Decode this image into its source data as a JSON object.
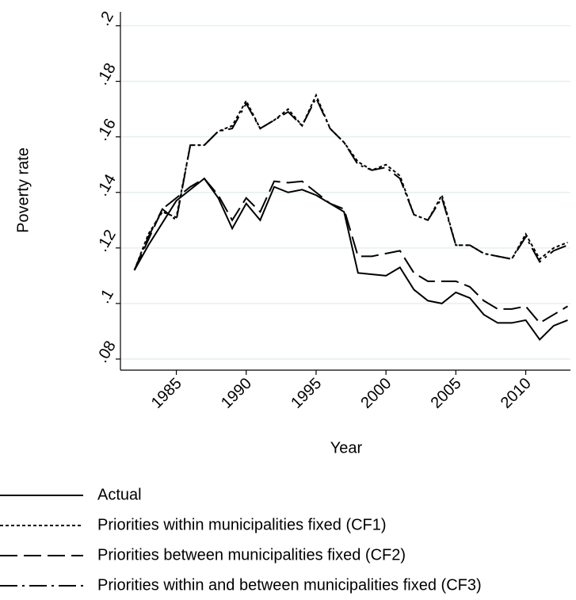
{
  "chart_data": {
    "type": "line",
    "y_label": "Poverty rate",
    "x_label": "Year",
    "x": [
      1982,
      1983,
      1984,
      1985,
      1986,
      1987,
      1988,
      1989,
      1990,
      1991,
      1992,
      1993,
      1994,
      1995,
      1996,
      1997,
      1998,
      1999,
      2000,
      2001,
      2002,
      2003,
      2004,
      2005,
      2006,
      2007,
      2008,
      2009,
      2010,
      2011,
      2012,
      2013
    ],
    "xlim": [
      1981,
      2013.2
    ],
    "xticks": [
      1985,
      1990,
      1995,
      2000,
      2005,
      2010
    ],
    "ylim": [
      0.076,
      0.205
    ],
    "yticks": [
      {
        "value": 0.08,
        "label": ".08"
      },
      {
        "value": 0.1,
        "label": ".1"
      },
      {
        "value": 0.12,
        "label": ".12"
      },
      {
        "value": 0.14,
        "label": ".14"
      },
      {
        "value": 0.16,
        "label": ".16"
      },
      {
        "value": 0.18,
        "label": ".18"
      },
      {
        "value": 0.2,
        "label": ".2"
      }
    ],
    "grid": true,
    "series": [
      {
        "name": "Actual",
        "color": "#000000",
        "dash": "none",
        "values": [
          0.112,
          0.121,
          0.129,
          0.137,
          0.141,
          0.145,
          0.138,
          0.127,
          0.136,
          0.13,
          0.142,
          0.14,
          0.141,
          0.139,
          0.136,
          0.133,
          0.111,
          0.1105,
          0.11,
          0.113,
          0.105,
          0.101,
          0.1,
          0.104,
          0.102,
          0.096,
          0.093,
          0.093,
          0.094,
          0.087,
          0.092,
          0.094
        ]
      },
      {
        "name": "Priorities within municipalities fixed (CF1)",
        "color": "#000000",
        "dash": "4,3",
        "values": [
          0.112,
          0.125,
          0.133,
          0.131,
          0.157,
          0.157,
          0.162,
          0.164,
          0.173,
          0.163,
          0.166,
          0.17,
          0.164,
          0.175,
          0.163,
          0.158,
          0.151,
          0.148,
          0.15,
          0.146,
          0.132,
          0.13,
          0.139,
          0.121,
          0.121,
          0.118,
          0.117,
          0.116,
          0.125,
          0.116,
          0.12,
          0.122
        ]
      },
      {
        "name": "Priorities between municipalities fixed (CF2)",
        "color": "#000000",
        "dash": "22,8",
        "values": [
          0.112,
          0.123,
          0.134,
          0.138,
          0.142,
          0.145,
          0.139,
          0.13,
          0.138,
          0.133,
          0.144,
          0.1435,
          0.144,
          0.14,
          0.136,
          0.134,
          0.117,
          0.117,
          0.118,
          0.119,
          0.111,
          0.108,
          0.108,
          0.108,
          0.106,
          0.101,
          0.098,
          0.098,
          0.099,
          0.093,
          0.096,
          0.099
        ]
      },
      {
        "name": "Priorities within and between municipalities fixed (CF3)",
        "color": "#000000",
        "dash": "22,6,3,6",
        "values": [
          0.112,
          0.124,
          0.134,
          0.13,
          0.157,
          0.157,
          0.162,
          0.163,
          0.172,
          0.163,
          0.166,
          0.169,
          0.164,
          0.174,
          0.163,
          0.158,
          0.15,
          0.148,
          0.149,
          0.145,
          0.132,
          0.13,
          0.138,
          0.121,
          0.121,
          0.118,
          0.117,
          0.116,
          0.124,
          0.115,
          0.119,
          0.121
        ]
      }
    ]
  }
}
